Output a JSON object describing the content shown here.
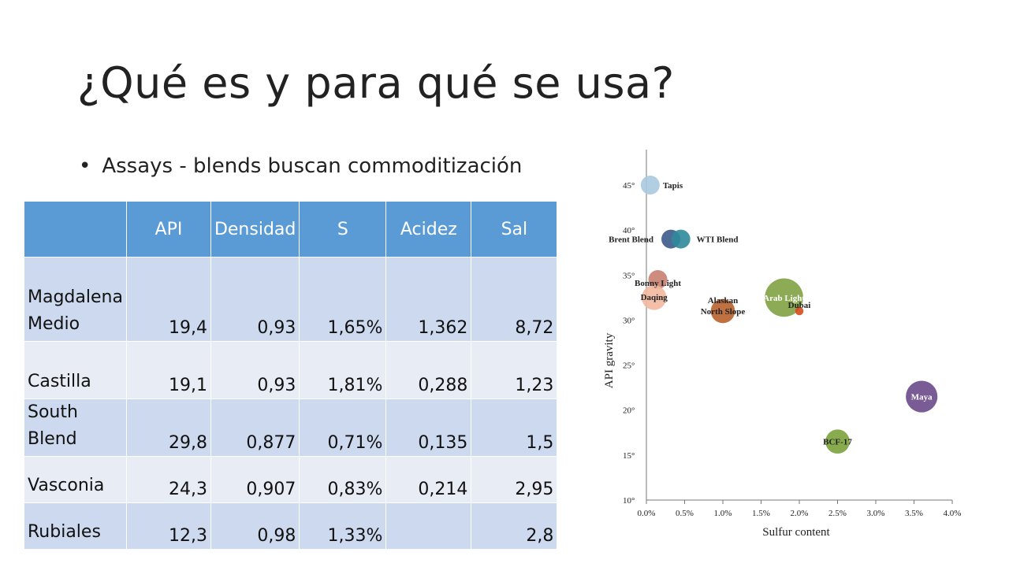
{
  "slide": {
    "title": "¿Qué es y para qué se usa?",
    "bullet_symbol": "•",
    "bullet": "Assays - blends buscan commoditización"
  },
  "table": {
    "headers": [
      "",
      "API",
      "Densidad",
      "S",
      "Acidez",
      "Sal"
    ],
    "rows": [
      [
        "Magdalena Medio",
        "19,4",
        "0,93",
        "1,65%",
        "1,362",
        "8,72"
      ],
      [
        "Castilla",
        "19,1",
        "0,93",
        "1,81%",
        "0,288",
        "1,23"
      ],
      [
        "South Blend",
        "29,8",
        "0,877",
        "0,71%",
        "0,135",
        "1,5"
      ],
      [
        "Vasconia",
        "24,3",
        "0,907",
        "0,83%",
        "0,214",
        "2,95"
      ],
      [
        "Rubiales",
        "12,3",
        "0,98",
        "1,33%",
        "",
        "2,8"
      ]
    ],
    "header_color": "#5b9bd5"
  },
  "chart_data": {
    "type": "scatter",
    "xlabel": "Sulfur content",
    "ylabel": "API gravity",
    "xlim": [
      0,
      4.0
    ],
    "ylim": [
      10,
      45
    ],
    "x_ticks": [
      "0.0%",
      "0.5%",
      "1.0%",
      "1.5%",
      "2.0%",
      "2.5%",
      "3.0%",
      "3.5%",
      "4.0%"
    ],
    "y_ticks": [
      "10°",
      "15°",
      "20°",
      "25°",
      "30°",
      "35°",
      "40°",
      "45°"
    ],
    "grid": false,
    "points": [
      {
        "name": "Tapis",
        "x": 0.05,
        "y": 45,
        "size": 1,
        "color": "#a9c9e0"
      },
      {
        "name": "Brent Blend",
        "x": 0.32,
        "y": 39,
        "size": 1,
        "color": "#3b5a8a"
      },
      {
        "name": "WTI Blend",
        "x": 0.45,
        "y": 39,
        "size": 1,
        "color": "#2f8a9a"
      },
      {
        "name": "Bonny Light",
        "x": 0.15,
        "y": 34.5,
        "size": 1,
        "color": "#c98070"
      },
      {
        "name": "Daqing",
        "x": 0.1,
        "y": 32.5,
        "size": 1.8,
        "color": "#f2b8a0"
      },
      {
        "name": "Alaskan North Slope",
        "x": 1.0,
        "y": 31,
        "size": 1.7,
        "color": "#b8622e"
      },
      {
        "name": "Arab Light",
        "x": 1.8,
        "y": 32.5,
        "size": 4.5,
        "color": "#7fa241"
      },
      {
        "name": "Dubai",
        "x": 2.0,
        "y": 31,
        "size": 0.15,
        "color": "#d84a1c"
      },
      {
        "name": "Maya",
        "x": 3.6,
        "y": 21.5,
        "size": 3.0,
        "color": "#6a4a8a"
      },
      {
        "name": "BCF-17",
        "x": 2.5,
        "y": 16.5,
        "size": 1.7,
        "color": "#7ba23c"
      }
    ]
  }
}
